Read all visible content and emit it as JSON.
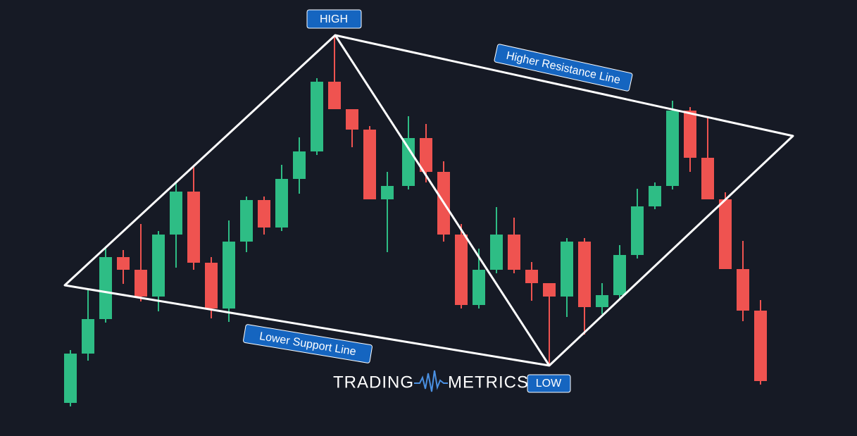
{
  "labels": {
    "high": "HIGH",
    "low": "LOW",
    "resistance": "Higher Resistance Line",
    "support": "Lower Support Line"
  },
  "logo": {
    "left": "TRADING",
    "right": "METRICS"
  }
}
